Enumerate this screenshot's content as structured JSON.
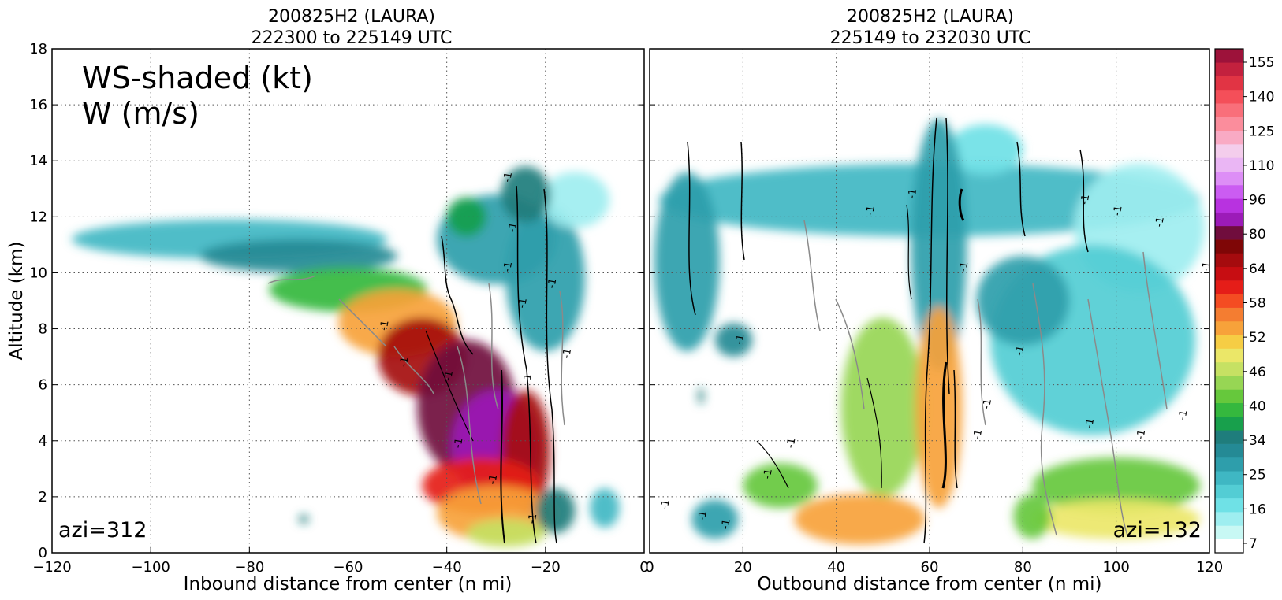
{
  "chart_data": [
    {
      "type": "heatmap",
      "title_line1": "200825H2 (LAURA)",
      "title_line2": "222300 to 225149 UTC",
      "xlabel": "Inbound distance from center (n mi)",
      "ylabel": "Altitude (km)",
      "xlim": [
        -120,
        0
      ],
      "ylim": [
        0,
        18
      ],
      "xticks": [
        -120,
        -100,
        -80,
        -60,
        -40,
        -20,
        0
      ],
      "yticks": [
        0,
        2,
        4,
        6,
        8,
        10,
        12,
        14,
        16,
        18
      ],
      "grid": true,
      "annotation_line1": "WS-shaded (kt)",
      "annotation_line2": "W (m/s)",
      "azimuth_label": "azi=312",
      "contour_label": "-1",
      "wind_blobs": [
        {
          "x": -84,
          "y": 11.2,
          "rx": 32,
          "ry": 0.7,
          "value": 22
        },
        {
          "x": -70,
          "y": 10.6,
          "rx": 20,
          "ry": 0.6,
          "value": 32
        },
        {
          "x": -60,
          "y": 9.4,
          "rx": 16,
          "ry": 0.8,
          "value": 38
        },
        {
          "x": -50,
          "y": 8.2,
          "rx": 12,
          "ry": 1.2,
          "value": 52
        },
        {
          "x": -30,
          "y": 11.2,
          "rx": 12,
          "ry": 1.6,
          "value": 25
        },
        {
          "x": -20,
          "y": 9.8,
          "rx": 8,
          "ry": 2.6,
          "value": 25
        },
        {
          "x": -14,
          "y": 12.6,
          "rx": 7,
          "ry": 1,
          "value": 12
        },
        {
          "x": -24,
          "y": 12.8,
          "rx": 5,
          "ry": 1,
          "value": 34
        },
        {
          "x": -36,
          "y": 12,
          "rx": 4,
          "ry": 0.7,
          "value": 36
        },
        {
          "x": -45,
          "y": 7,
          "rx": 9,
          "ry": 1.4,
          "value": 64
        },
        {
          "x": -36,
          "y": 5.2,
          "rx": 10,
          "ry": 2.4,
          "value": 82
        },
        {
          "x": -30,
          "y": 3.8,
          "rx": 9,
          "ry": 2,
          "value": 84
        },
        {
          "x": -24,
          "y": 3.6,
          "rx": 5,
          "ry": 2.2,
          "value": 64
        },
        {
          "x": -33,
          "y": 2.4,
          "rx": 12,
          "ry": 1,
          "value": 60
        },
        {
          "x": -30,
          "y": 1.4,
          "rx": 12,
          "ry": 1,
          "value": 52
        },
        {
          "x": -28,
          "y": 0.7,
          "rx": 8,
          "ry": 0.5,
          "value": 46
        },
        {
          "x": -18,
          "y": 1.5,
          "rx": 4,
          "ry": 0.8,
          "value": 34
        },
        {
          "x": -8,
          "y": 1.6,
          "rx": 3,
          "ry": 0.7,
          "value": 22
        },
        {
          "x": -69,
          "y": 1.2,
          "rx": 1,
          "ry": 0.15,
          "value": 34
        }
      ]
    },
    {
      "type": "heatmap",
      "title_line1": "200825H2 (LAURA)",
      "title_line2": "225149 to 232030 UTC",
      "xlabel": "Outbound distance from center (n mi)",
      "ylabel": "",
      "xlim": [
        0,
        120
      ],
      "ylim": [
        0,
        18
      ],
      "xticks": [
        0,
        20,
        40,
        60,
        80,
        100,
        120
      ],
      "yticks": [
        0,
        2,
        4,
        6,
        8,
        10,
        12,
        14,
        16,
        18
      ],
      "grid": true,
      "azimuth_label": "azi=132",
      "contour_label": "-1",
      "wind_blobs": [
        {
          "x": 60,
          "y": 12.6,
          "rx": 58,
          "ry": 1.3,
          "value": 24
        },
        {
          "x": 105,
          "y": 11.6,
          "rx": 14,
          "ry": 2.3,
          "value": 14
        },
        {
          "x": 72,
          "y": 14.4,
          "rx": 8,
          "ry": 0.9,
          "value": 16
        },
        {
          "x": 8,
          "y": 10.4,
          "rx": 7,
          "ry": 3.2,
          "value": 25
        },
        {
          "x": 95,
          "y": 7.6,
          "rx": 22,
          "ry": 3.4,
          "value": 19
        },
        {
          "x": 80,
          "y": 9,
          "rx": 10,
          "ry": 1.6,
          "value": 28
        },
        {
          "x": 62,
          "y": 11,
          "rx": 6,
          "ry": 4.5,
          "value": 26
        },
        {
          "x": 18,
          "y": 7.6,
          "rx": 4,
          "ry": 0.6,
          "value": 30
        },
        {
          "x": 50,
          "y": 5.2,
          "rx": 9,
          "ry": 3.2,
          "value": 44
        },
        {
          "x": 62,
          "y": 5.2,
          "rx": 5,
          "ry": 3.6,
          "value": 54
        },
        {
          "x": 100,
          "y": 2.4,
          "rx": 18,
          "ry": 1,
          "value": 40
        },
        {
          "x": 100,
          "y": 1.2,
          "rx": 18,
          "ry": 0.7,
          "value": 48
        },
        {
          "x": 45,
          "y": 1.2,
          "rx": 14,
          "ry": 0.9,
          "value": 53
        },
        {
          "x": 28,
          "y": 2.4,
          "rx": 8,
          "ry": 0.8,
          "value": 40
        },
        {
          "x": 14,
          "y": 1.2,
          "rx": 5,
          "ry": 0.7,
          "value": 28
        },
        {
          "x": 82,
          "y": 1.3,
          "rx": 4,
          "ry": 0.8,
          "value": 40
        },
        {
          "x": 11,
          "y": 5.6,
          "rx": 0.6,
          "ry": 0.3,
          "value": 34
        }
      ]
    }
  ],
  "colorbar": {
    "tick_labels": [
      "7",
      "16",
      "25",
      "34",
      "40",
      "46",
      "52",
      "58",
      "64",
      "80",
      "96",
      "110",
      "125",
      "140",
      "155"
    ],
    "colors": [
      "#ffffff",
      "#c8f8f4",
      "#9eeef0",
      "#6fe1e6",
      "#53cdd4",
      "#3fb7c3",
      "#2e9eab",
      "#248a95",
      "#1f7d7c",
      "#18a04c",
      "#35b83e",
      "#66c83c",
      "#97d654",
      "#c6e163",
      "#ebe768",
      "#f6cd44",
      "#f7a23a",
      "#f47d31",
      "#f44c22",
      "#e51d18",
      "#c70d12",
      "#a50b0e",
      "#7f0606",
      "#700d3d",
      "#9c1bb8",
      "#b832e0",
      "#cb5cf2",
      "#dd8ef6",
      "#eab6f4",
      "#f4cdec",
      "#f9aac4",
      "#fb8d9c",
      "#f96f7a",
      "#f44f59",
      "#e13444",
      "#c3213e",
      "#9d123a"
    ]
  }
}
